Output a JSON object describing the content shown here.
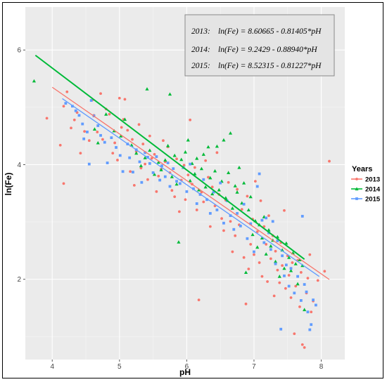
{
  "chart_data": {
    "type": "scatter",
    "xlabel": "pH",
    "ylabel": "ln(Fe)",
    "xlim": [
      3.6,
      8.35
    ],
    "ylim": [
      0.6,
      6.75
    ],
    "xticks": [
      4,
      5,
      6,
      7,
      8
    ],
    "yticks": [
      2,
      4,
      6
    ],
    "grid": true,
    "legend": {
      "title": "Years",
      "placement": "right"
    },
    "equations": [
      {
        "year": "2013:",
        "text": "ln(Fe) = 8.60665 - 0.81405*pH"
      },
      {
        "year": "2014:",
        "text": "ln(Fe) = 9.2429 - 0.88940*pH"
      },
      {
        "year": "2015:",
        "text": "ln(Fe) = 8.52315 - 0.81227*pH"
      }
    ],
    "series": [
      {
        "name": "2013",
        "color": "#F8766D",
        "marker": "circle",
        "fit": {
          "intercept": 8.60665,
          "slope": -0.81405,
          "x_range": [
            4.0,
            8.12
          ]
        },
        "points": [
          [
            3.92,
            4.81
          ],
          [
            4.12,
            4.34
          ],
          [
            4.17,
            5.02
          ],
          [
            4.17,
            3.67
          ],
          [
            4.22,
            5.27
          ],
          [
            4.28,
            4.64
          ],
          [
            4.33,
            4.78
          ],
          [
            4.37,
            4.91
          ],
          [
            4.42,
            4.2
          ],
          [
            4.48,
            4.58
          ],
          [
            4.55,
            4.42
          ],
          [
            4.6,
            5.13
          ],
          [
            4.62,
            4.86
          ],
          [
            4.67,
            4.57
          ],
          [
            4.72,
            5.24
          ],
          [
            4.75,
            4.44
          ],
          [
            4.8,
            4.97
          ],
          [
            4.85,
            4.88
          ],
          [
            4.9,
            4.2
          ],
          [
            4.93,
            4.38
          ],
          [
            4.97,
            4.08
          ],
          [
            5.0,
            5.16
          ],
          [
            5.03,
            4.65
          ],
          [
            5.06,
            4.79
          ],
          [
            5.08,
            5.14
          ],
          [
            5.12,
            4.6
          ],
          [
            5.16,
            3.88
          ],
          [
            5.19,
            4.44
          ],
          [
            5.22,
            3.64
          ],
          [
            5.25,
            4.23
          ],
          [
            5.29,
            4.7
          ],
          [
            5.32,
            3.94
          ],
          [
            5.35,
            4.36
          ],
          [
            5.38,
            4.01
          ],
          [
            5.42,
            3.74
          ],
          [
            5.45,
            4.5
          ],
          [
            5.48,
            4.11
          ],
          [
            5.52,
            4.18
          ],
          [
            5.55,
            3.53
          ],
          [
            5.58,
            3.8
          ],
          [
            5.62,
            3.92
          ],
          [
            5.65,
            4.42
          ],
          [
            5.68,
            4.05
          ],
          [
            5.72,
            4.31
          ],
          [
            5.75,
            3.86
          ],
          [
            5.78,
            3.55
          ],
          [
            5.82,
            3.44
          ],
          [
            5.85,
            4.1
          ],
          [
            5.89,
            3.18
          ],
          [
            5.92,
            3.73
          ],
          [
            5.96,
            3.99
          ],
          [
            5.98,
            3.39
          ],
          [
            6.02,
            3.82
          ],
          [
            6.05,
            4.78
          ],
          [
            6.08,
            3.66
          ],
          [
            6.12,
            3.95
          ],
          [
            6.15,
            3.21
          ],
          [
            6.18,
            1.64
          ],
          [
            6.22,
            3.52
          ],
          [
            6.25,
            3.35
          ],
          [
            6.28,
            4.07
          ],
          [
            6.32,
            3.78
          ],
          [
            6.35,
            2.92
          ],
          [
            6.38,
            3.61
          ],
          [
            6.42,
            3.28
          ],
          [
            6.45,
            4.21
          ],
          [
            6.48,
            3.48
          ],
          [
            6.52,
            3.06
          ],
          [
            6.55,
            2.85
          ],
          [
            6.58,
            3.38
          ],
          [
            6.62,
            3.69
          ],
          [
            6.65,
            3.01
          ],
          [
            6.68,
            2.48
          ],
          [
            6.72,
            2.76
          ],
          [
            6.75,
            3.57
          ],
          [
            6.78,
            2.95
          ],
          [
            6.82,
            3.22
          ],
          [
            6.85,
            2.38
          ],
          [
            6.88,
            1.57
          ],
          [
            6.9,
            3.45
          ],
          [
            6.92,
            2.18
          ],
          [
            6.95,
            2.61
          ],
          [
            6.98,
            3.05
          ],
          [
            7.0,
            2.43
          ],
          [
            7.02,
            3.71
          ],
          [
            7.05,
            2.83
          ],
          [
            7.08,
            2.29
          ],
          [
            7.1,
            3.37
          ],
          [
            7.12,
            2.05
          ],
          [
            7.15,
            2.92
          ],
          [
            7.18,
            2.61
          ],
          [
            7.2,
            1.96
          ],
          [
            7.22,
            3.11
          ],
          [
            7.25,
            2.36
          ],
          [
            7.28,
            2.76
          ],
          [
            7.3,
            1.71
          ],
          [
            7.32,
            2.49
          ],
          [
            7.35,
            2.16
          ],
          [
            7.38,
            1.94
          ],
          [
            7.4,
            2.64
          ],
          [
            7.42,
            2.24
          ],
          [
            7.45,
            3.2
          ],
          [
            7.47,
            1.84
          ],
          [
            7.5,
            2.41
          ],
          [
            7.52,
            2.07
          ],
          [
            7.55,
            1.68
          ],
          [
            7.57,
            2.29
          ],
          [
            7.6,
            1.05
          ],
          [
            7.62,
            1.88
          ],
          [
            7.65,
            2.33
          ],
          [
            7.68,
            1.52
          ],
          [
            7.7,
            2.12
          ],
          [
            7.72,
            0.86
          ],
          [
            7.75,
            0.81
          ],
          [
            7.78,
            1.76
          ],
          [
            7.8,
            2.02
          ],
          [
            7.83,
            2.43
          ],
          [
            7.85,
            1.43
          ],
          [
            7.88,
            1.62
          ],
          [
            7.95,
            1.98
          ],
          [
            8.05,
            2.14
          ],
          [
            8.12,
            4.06
          ]
        ]
      },
      {
        "name": "2014",
        "color": "#00BA38",
        "marker": "triangle",
        "fit": {
          "intercept": 9.2429,
          "slope": -0.8894,
          "x_range": [
            3.75,
            7.75
          ]
        },
        "points": [
          [
            3.73,
            5.46
          ],
          [
            4.63,
            4.62
          ],
          [
            4.68,
            4.38
          ],
          [
            4.8,
            4.88
          ],
          [
            4.92,
            4.59
          ],
          [
            5.02,
            4.5
          ],
          [
            5.08,
            4.79
          ],
          [
            5.18,
            4.34
          ],
          [
            5.25,
            4.2
          ],
          [
            5.32,
            3.98
          ],
          [
            5.38,
            4.12
          ],
          [
            5.41,
            5.32
          ],
          [
            5.45,
            4.25
          ],
          [
            5.52,
            3.83
          ],
          [
            5.58,
            4.04
          ],
          [
            5.62,
            3.91
          ],
          [
            5.68,
            4.08
          ],
          [
            5.72,
            4.33
          ],
          [
            5.75,
            5.23
          ],
          [
            5.78,
            3.79
          ],
          [
            5.82,
            4.16
          ],
          [
            5.85,
            3.66
          ],
          [
            5.88,
            2.65
          ],
          [
            5.92,
            4.09
          ],
          [
            5.95,
            3.95
          ],
          [
            5.98,
            4.22
          ],
          [
            6.02,
            4.43
          ],
          [
            6.05,
            3.72
          ],
          [
            6.08,
            4.02
          ],
          [
            6.12,
            3.84
          ],
          [
            6.15,
            4.11
          ],
          [
            6.18,
            3.56
          ],
          [
            6.22,
            3.93
          ],
          [
            6.25,
            4.18
          ],
          [
            6.28,
            3.61
          ],
          [
            6.32,
            4.31
          ],
          [
            6.35,
            3.77
          ],
          [
            6.38,
            3.49
          ],
          [
            6.42,
            3.89
          ],
          [
            6.45,
            4.32
          ],
          [
            6.48,
            3.56
          ],
          [
            6.52,
            3.71
          ],
          [
            6.55,
            4.43
          ],
          [
            6.58,
            3.42
          ],
          [
            6.62,
            3.86
          ],
          [
            6.65,
            4.55
          ],
          [
            6.68,
            3.24
          ],
          [
            6.72,
            3.63
          ],
          [
            6.75,
            3.52
          ],
          [
            6.78,
            3.95
          ],
          [
            6.82,
            3.33
          ],
          [
            6.85,
            3.68
          ],
          [
            6.88,
            2.12
          ],
          [
            6.92,
            3.21
          ],
          [
            6.95,
            3.44
          ],
          [
            6.98,
            2.78
          ],
          [
            7.02,
            3.02
          ],
          [
            7.05,
            2.56
          ],
          [
            7.08,
            2.95
          ],
          [
            7.12,
            2.72
          ],
          [
            7.15,
            3.09
          ],
          [
            7.18,
            2.44
          ],
          [
            7.22,
            2.86
          ],
          [
            7.25,
            2.58
          ],
          [
            7.28,
            2.68
          ],
          [
            7.32,
            2.31
          ],
          [
            7.35,
            2.74
          ],
          [
            7.38,
            2.05
          ],
          [
            7.42,
            2.51
          ],
          [
            7.45,
            2.19
          ],
          [
            7.48,
            2.63
          ],
          [
            7.52,
            2.38
          ],
          [
            7.55,
            2.15
          ],
          [
            7.58,
            2.46
          ],
          [
            7.62,
            2.27
          ],
          [
            7.65,
            1.92
          ],
          [
            7.68,
            2.34
          ],
          [
            7.72,
            2.24
          ],
          [
            7.75,
            1.47
          ]
        ]
      },
      {
        "name": "2015",
        "color": "#619CFF",
        "marker": "square",
        "fit": {
          "intercept": 8.52315,
          "slope": -0.81227,
          "x_range": [
            4.15,
            7.97
          ]
        },
        "points": [
          [
            4.2,
            5.07
          ],
          [
            4.3,
            5.02
          ],
          [
            4.35,
            4.94
          ],
          [
            4.4,
            4.86
          ],
          [
            4.45,
            4.71
          ],
          [
            4.47,
            4.45
          ],
          [
            4.52,
            4.57
          ],
          [
            4.55,
            4.01
          ],
          [
            4.58,
            5.12
          ],
          [
            4.62,
            4.85
          ],
          [
            4.68,
            4.68
          ],
          [
            4.72,
            4.51
          ],
          [
            4.78,
            4.39
          ],
          [
            4.82,
            4.03
          ],
          [
            4.88,
            4.47
          ],
          [
            4.95,
            4.3
          ],
          [
            5.01,
            4.16
          ],
          [
            5.05,
            3.88
          ],
          [
            5.12,
            4.36
          ],
          [
            5.15,
            4.12
          ],
          [
            5.2,
            3.87
          ],
          [
            5.25,
            4.26
          ],
          [
            5.3,
            4.05
          ],
          [
            5.33,
            3.69
          ],
          [
            5.38,
            4.21
          ],
          [
            5.42,
            4.13
          ],
          [
            5.45,
            4.02
          ],
          [
            5.5,
            3.86
          ],
          [
            5.55,
            4.14
          ],
          [
            5.6,
            3.73
          ],
          [
            5.63,
            3.98
          ],
          [
            5.68,
            3.79
          ],
          [
            5.72,
            4.03
          ],
          [
            5.75,
            3.62
          ],
          [
            5.8,
            3.93
          ],
          [
            5.85,
            3.71
          ],
          [
            5.9,
            3.67
          ],
          [
            5.95,
            3.95
          ],
          [
            6.0,
            3.53
          ],
          [
            6.05,
            4.01
          ],
          [
            6.1,
            3.58
          ],
          [
            6.15,
            3.32
          ],
          [
            6.2,
            3.48
          ],
          [
            6.25,
            3.74
          ],
          [
            6.3,
            3.39
          ],
          [
            6.35,
            3.15
          ],
          [
            6.4,
            3.52
          ],
          [
            6.45,
            3.21
          ],
          [
            6.5,
            3.68
          ],
          [
            6.55,
            2.98
          ],
          [
            6.6,
            3.37
          ],
          [
            6.65,
            3.11
          ],
          [
            6.7,
            2.87
          ],
          [
            6.75,
            3.15
          ],
          [
            6.8,
            2.93
          ],
          [
            6.85,
            3.31
          ],
          [
            6.9,
            2.71
          ],
          [
            6.95,
            2.97
          ],
          [
            7.0,
            2.48
          ],
          [
            7.05,
            3.62
          ],
          [
            7.08,
            3.84
          ],
          [
            7.12,
            3.03
          ],
          [
            7.15,
            2.64
          ],
          [
            7.18,
            3.07
          ],
          [
            7.22,
            2.81
          ],
          [
            7.25,
            2.52
          ],
          [
            7.28,
            3.01
          ],
          [
            7.32,
            2.27
          ],
          [
            7.35,
            2.67
          ],
          [
            7.4,
            1.13
          ],
          [
            7.42,
            2.41
          ],
          [
            7.45,
            2.06
          ],
          [
            7.48,
            2.25
          ],
          [
            7.52,
            1.88
          ],
          [
            7.55,
            2.19
          ],
          [
            7.6,
            1.76
          ],
          [
            7.65,
            2.05
          ],
          [
            7.7,
            1.63
          ],
          [
            7.72,
            3.1
          ],
          [
            7.75,
            1.91
          ],
          [
            7.78,
            1.78
          ],
          [
            7.8,
            1.43
          ],
          [
            7.83,
            1.12
          ],
          [
            7.85,
            1.21
          ],
          [
            7.88,
            1.64
          ],
          [
            7.92,
            1.55
          ]
        ]
      }
    ]
  }
}
